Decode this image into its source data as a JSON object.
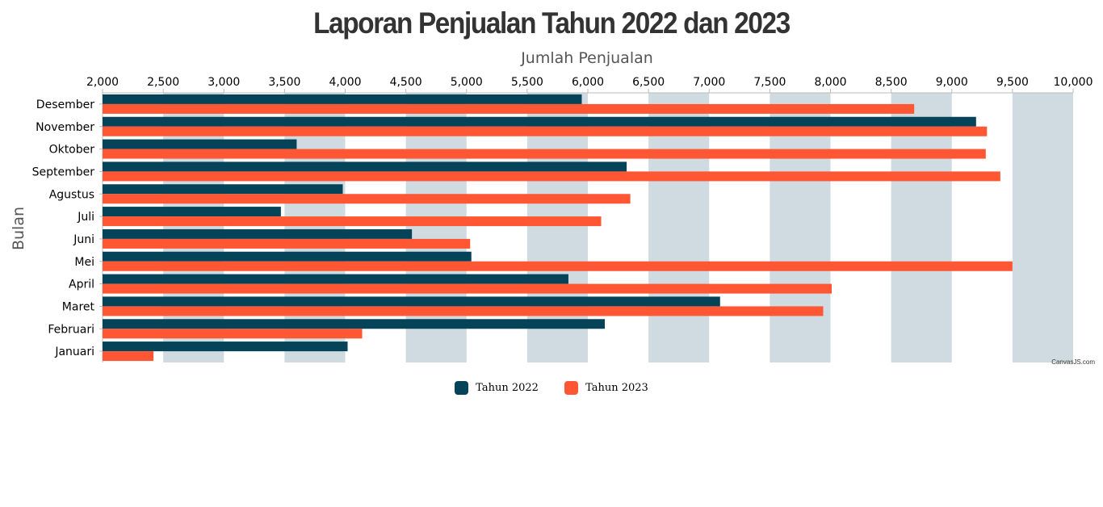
{
  "chart_data": {
    "type": "bar",
    "orientation": "horizontal",
    "title": "Laporan Penjualan Tahun 2022 dan 2023",
    "xlabel": "Jumlah Penjualan",
    "ylabel": "Bulan",
    "xlim": [
      2000,
      10000
    ],
    "x_ticks": [
      2000,
      2500,
      3000,
      3500,
      4000,
      4500,
      5000,
      5500,
      6000,
      6500,
      7000,
      7500,
      8000,
      8500,
      9000,
      9500,
      10000
    ],
    "x_tick_labels": [
      "2,000",
      "2,500",
      "3,000",
      "3,500",
      "4,000",
      "4,500",
      "5,000",
      "5,500",
      "6,000",
      "6,500",
      "7,000",
      "7,500",
      "8,000",
      "8,500",
      "9,000",
      "9,500",
      "10,000"
    ],
    "categories": [
      "Januari",
      "Februari",
      "Maret",
      "April",
      "Mei",
      "Juni",
      "Juli",
      "Agustus",
      "September",
      "Oktober",
      "November",
      "Desember"
    ],
    "series": [
      {
        "name": "Tahun 2022",
        "color": "#044358",
        "values": [
          4020,
          6140,
          7090,
          5840,
          5040,
          4550,
          3470,
          3980,
          6320,
          3600,
          9200,
          5950
        ]
      },
      {
        "name": "Tahun 2023",
        "color": "#ff5634",
        "values": [
          2420,
          4140,
          7940,
          8010,
          9500,
          5030,
          6110,
          6350,
          9400,
          9280,
          9290,
          8690
        ]
      }
    ],
    "alternating_band_color": "#cfdbe0",
    "legend_position": "bottom-center",
    "credit": "CanvasJS.com"
  }
}
